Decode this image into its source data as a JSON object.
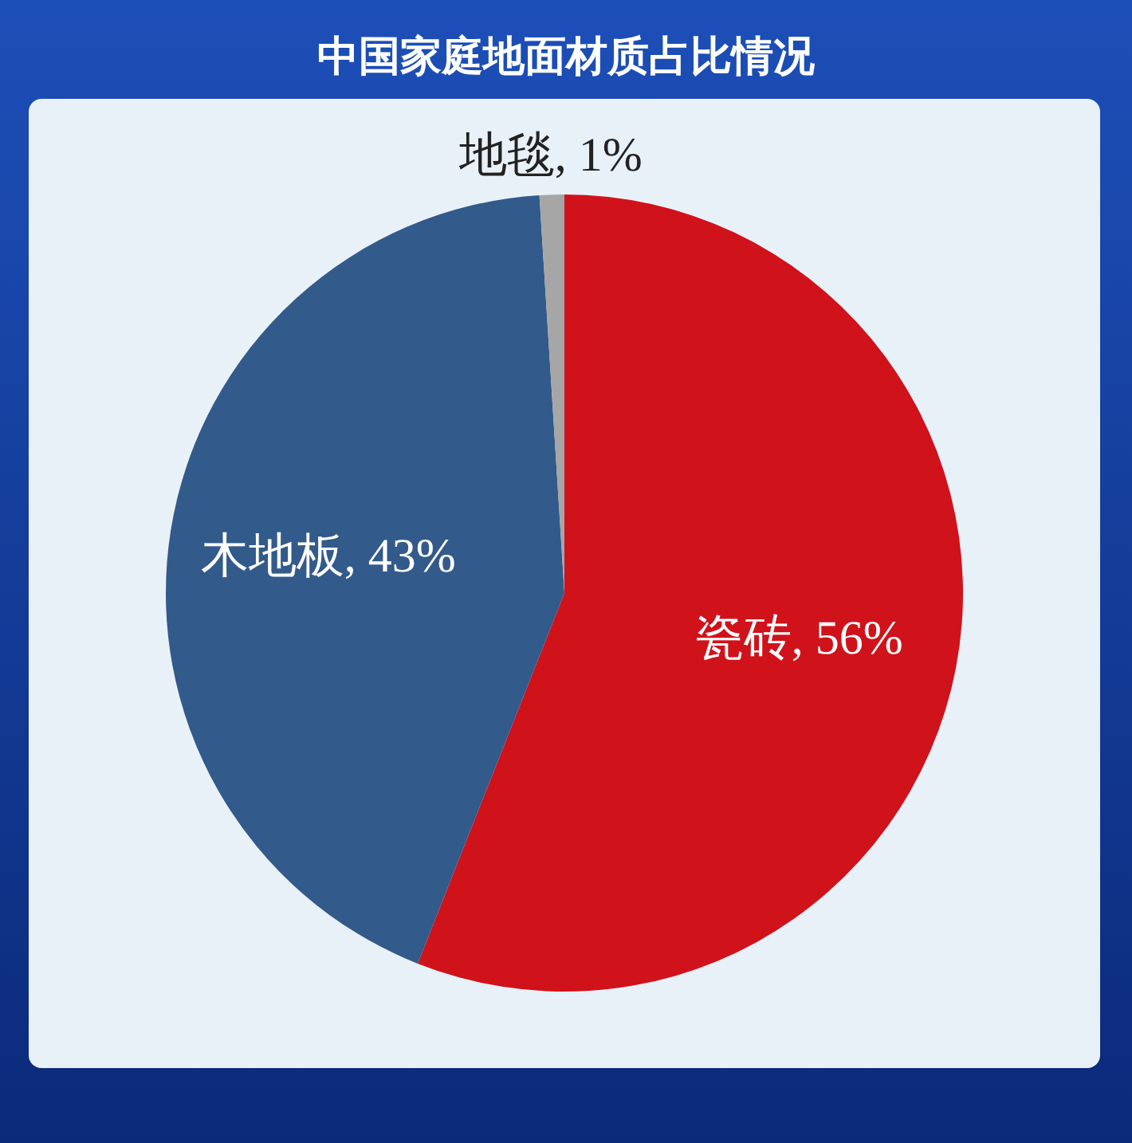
{
  "chart_data": {
    "type": "pie",
    "title": "中国家庭地面材质占比情况",
    "categories": [
      "瓷砖",
      "木地板",
      "地毯"
    ],
    "values": [
      56,
      43,
      1
    ],
    "value_labels": [
      "56%",
      "43%",
      "1%"
    ],
    "colors": [
      "#d0121b",
      "#325a8a",
      "#a6a6a6"
    ],
    "legend": false
  }
}
